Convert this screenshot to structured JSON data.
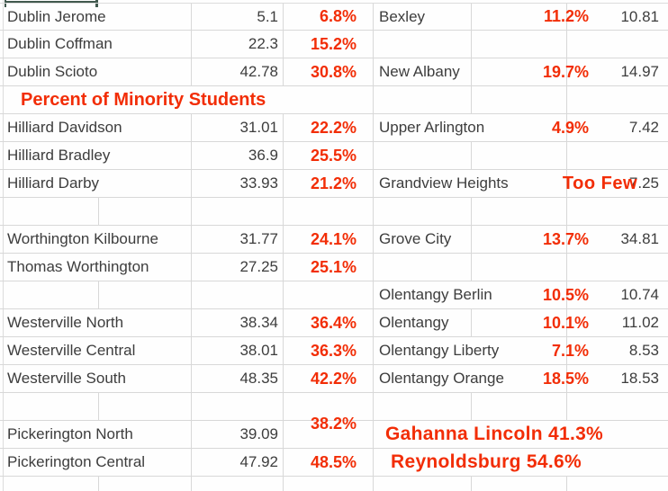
{
  "colors": {
    "annotation_red": "#f22d06",
    "cell_text": "#3d3d3d",
    "gridline": "#d8d8d8",
    "selection_border": "#41594e"
  },
  "title": "Percent of Minority Students",
  "rows": [
    {
      "l_name": "Dublin Jerome",
      "l_val": "5.1",
      "l_pct": "6.8%",
      "r_name": "Bexley",
      "r_pct": "11.2%",
      "r_val": "10.81"
    },
    {
      "l_name": "Dublin Coffman",
      "l_val": "22.3",
      "l_pct": "15.2%"
    },
    {
      "l_name": "Dublin Scioto",
      "l_val": "42.78",
      "l_pct": "30.8%",
      "r_name": "New Albany",
      "r_pct": "19.7%",
      "r_val": "14.97"
    },
    {
      "title_text": "Percent of Minority Students"
    },
    {
      "l_name": "Hilliard Davidson",
      "l_val": "31.01",
      "l_pct": "22.2%",
      "r_name": "Upper Arlington",
      "r_pct": "4.9%",
      "r_val": "7.42"
    },
    {
      "l_name": "Hilliard Bradley",
      "l_val": "36.9",
      "l_pct": "25.5%"
    },
    {
      "l_name": "Hilliard Darby",
      "l_val": "33.93",
      "l_pct": "21.2%",
      "r_name": "Grandview Heights",
      "r_pct": "Too Few",
      "r_val": "7.25"
    },
    {},
    {
      "l_name": "Worthington Kilbourne",
      "l_val": "31.77",
      "l_pct": "24.1%",
      "r_name": "Grove City",
      "r_pct": "13.7%",
      "r_val": "34.81"
    },
    {
      "l_name": "Thomas Worthington",
      "l_val": "27.25",
      "l_pct": "25.1%"
    },
    {
      "r_name": "Olentangy Berlin",
      "r_pct": "10.5%",
      "r_val": "10.74"
    },
    {
      "l_name": "Westerville North",
      "l_val": "38.34",
      "l_pct": "36.4%",
      "r_name": "Olentangy",
      "r_pct": "10.1%",
      "r_val": "11.02"
    },
    {
      "l_name": "Westerville Central",
      "l_val": "38.01",
      "l_pct": "36.3%",
      "r_name": "Olentangy Liberty",
      "r_pct": "7.1%",
      "r_val": "8.53"
    },
    {
      "l_name": "Westerville South",
      "l_val": "48.35",
      "l_pct": "42.2%",
      "r_name": "Olentangy Orange",
      "r_pct": "18.5%",
      "r_val": "18.53"
    },
    {},
    {
      "l_name": "Pickerington North",
      "l_val": "39.09",
      "l_pct": "38.2%",
      "r_note": "Gahanna Lincoln 41.3%"
    },
    {
      "l_name": "Pickerington Central",
      "l_val": "47.92",
      "l_pct": "48.5%",
      "r_note": "Reynoldsburg 54.6%"
    },
    {}
  ]
}
